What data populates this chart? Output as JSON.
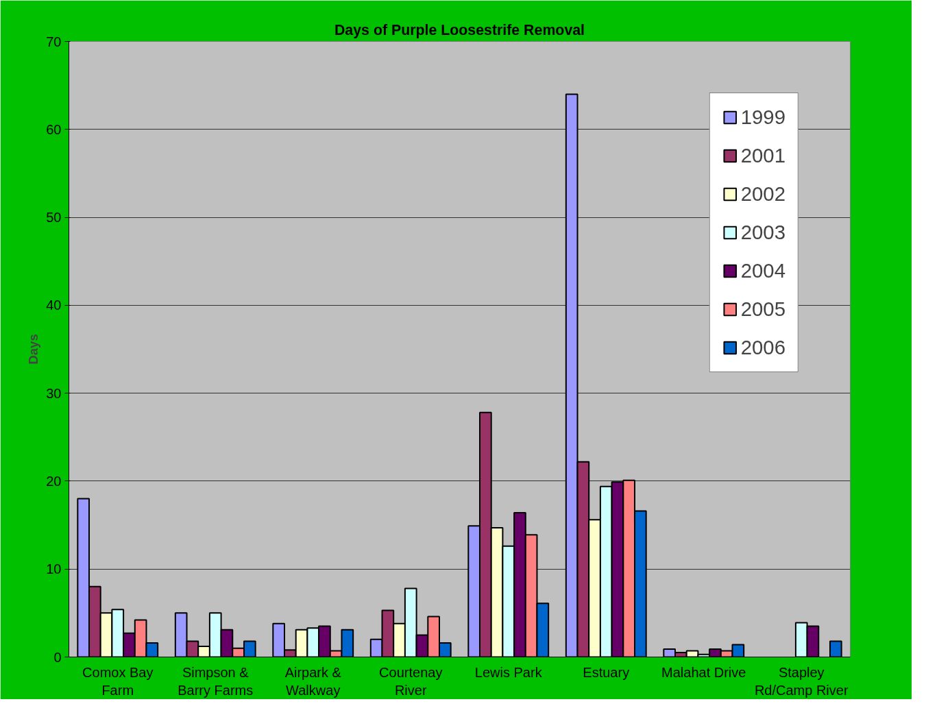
{
  "chart_data": {
    "type": "bar",
    "title": "Days of Purple Loosestrife Removal",
    "ylabel": "Days",
    "categories": [
      "Comox Bay Farm",
      "Simpson & Barry Farms",
      "Airpark & Walkway",
      "Courtenay River",
      "Lewis Park",
      "Estuary",
      "Malahat Drive",
      "Stapley Rd/Camp River"
    ],
    "series": [
      {
        "name": "1999",
        "color": "#9999ff",
        "values": [
          18,
          5,
          3.8,
          2,
          14.9,
          64,
          0.9,
          null
        ]
      },
      {
        "name": "2001",
        "color": "#993366",
        "values": [
          8,
          1.8,
          0.8,
          5.3,
          27.8,
          22.2,
          0.5,
          null
        ]
      },
      {
        "name": "2002",
        "color": "#ffffcc",
        "values": [
          5,
          1.2,
          3.1,
          3.8,
          14.7,
          15.6,
          0.7,
          null
        ]
      },
      {
        "name": "2003",
        "color": "#ccffff",
        "values": [
          5.4,
          5,
          3.3,
          7.8,
          12.6,
          19.4,
          0.3,
          3.9
        ]
      },
      {
        "name": "2004",
        "color": "#660066",
        "values": [
          2.7,
          3.1,
          3.5,
          2.5,
          16.4,
          19.9,
          0.9,
          3.5
        ]
      },
      {
        "name": "2005",
        "color": "#ff8080",
        "values": [
          4.2,
          1,
          0.7,
          4.6,
          13.9,
          20.1,
          0.7,
          null
        ]
      },
      {
        "name": "2006",
        "color": "#0066cc",
        "values": [
          1.6,
          1.8,
          3.1,
          1.6,
          6.1,
          16.6,
          1.4,
          1.8
        ]
      }
    ],
    "ylim": [
      0,
      70
    ],
    "yticks": [
      0,
      10,
      20,
      30,
      40,
      50,
      60,
      70
    ],
    "grid": "y",
    "legend": "top right"
  }
}
